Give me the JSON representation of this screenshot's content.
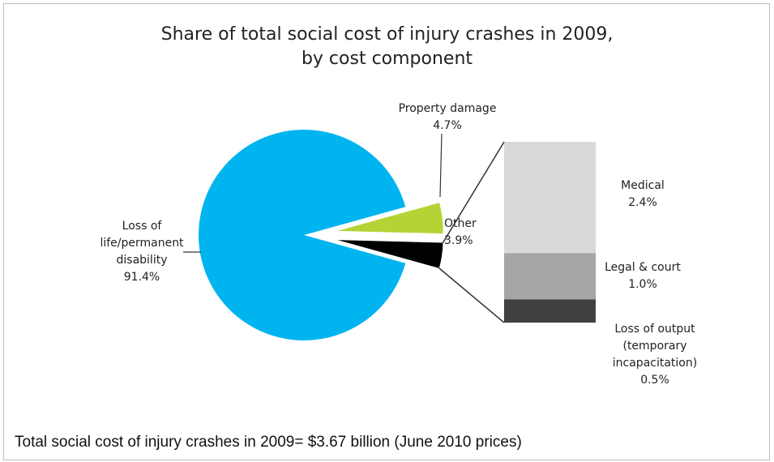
{
  "chart_data": {
    "type": "pie",
    "title_lines": [
      "Share of total social cost of injury crashes in 2009,",
      "by cost component"
    ],
    "slices": [
      {
        "key": "life",
        "label_lines": [
          "Loss of",
          "life/permanent",
          "disability"
        ],
        "value_label": "91.4%",
        "value": 91.4,
        "color": "#00b5ef"
      },
      {
        "key": "property",
        "label_lines": [
          "Property damage"
        ],
        "value_label": "4.7%",
        "value": 4.7,
        "color": "#b5d334"
      },
      {
        "key": "other",
        "label_lines": [
          "Other"
        ],
        "value_label": "3.9%",
        "value": 3.9,
        "color": "#000000"
      }
    ],
    "breakdown": {
      "of": "other",
      "segments": [
        {
          "key": "medical",
          "label_lines": [
            "Medical"
          ],
          "value_label": "2.4%",
          "value": 2.4,
          "color": "#d9d9d9"
        },
        {
          "key": "legal",
          "label_lines": [
            "Legal & court"
          ],
          "value_label": "1.0%",
          "value": 1.0,
          "color": "#a6a6a6"
        },
        {
          "key": "output",
          "label_lines": [
            "Loss of output",
            "(temporary",
            "incapacitation)"
          ],
          "value_label": "0.5%",
          "value": 0.5,
          "color": "#404040"
        }
      ]
    },
    "footnote": "Total social cost of injury crashes in 2009= $3.67 billion (June 2010 prices)"
  }
}
